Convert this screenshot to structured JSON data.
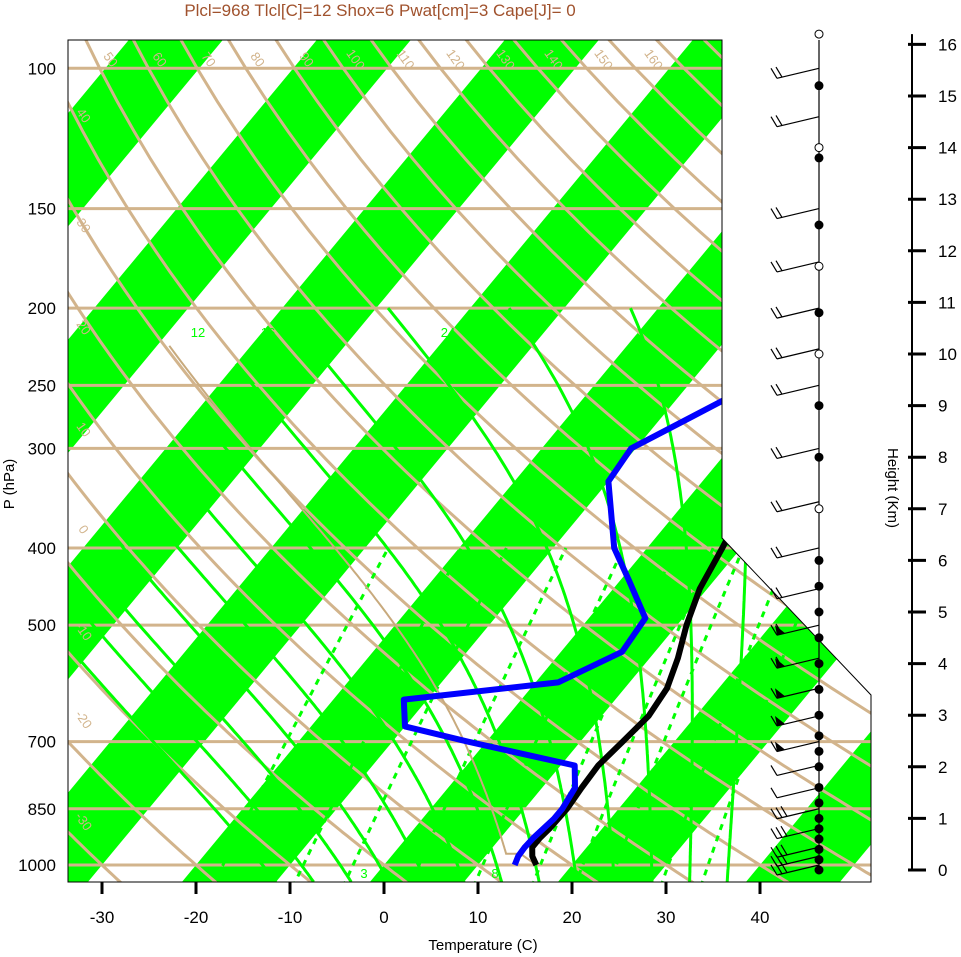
{
  "title": "Plcl=968 Tlcl[C]=12 Shox=6 Pwat[cm]=3 Cape[J]= 0",
  "colors": {
    "title": "#a0522d",
    "isobar": "#d2b48c",
    "band": "#00ff00",
    "temperature": "#000000",
    "dewpoint": "#0000ff",
    "mixing_ratio": "#00ff00",
    "moist_adiabat": "#00ff00",
    "dry_adiabat": "#d2b48c",
    "parcel": "#c8aa7d"
  },
  "chart_data": {
    "type": "line",
    "chart_kind": "skew-T log-P diagram",
    "xlabel": "Temperature (C)",
    "ylabel": "P (hPa)",
    "y2label": "Height (Km)",
    "pressure_ticks": [
      100,
      150,
      200,
      250,
      300,
      400,
      500,
      700,
      850,
      1000
    ],
    "temperature_ticks": [
      -30,
      -20,
      -10,
      0,
      10,
      20,
      30,
      40
    ],
    "height_ticks": [
      0,
      1,
      2,
      3,
      4,
      5,
      6,
      7,
      8,
      9,
      10,
      11,
      12,
      13,
      14,
      15,
      16
    ],
    "isotherm_labels": [
      "50",
      "60",
      "70",
      "80",
      "90",
      "100",
      "110",
      "120",
      "130",
      "140",
      "150",
      "160",
      "40",
      "30",
      "20",
      "10",
      "0",
      "-10",
      "-20",
      "-30"
    ],
    "isotherm_labels_right": [
      "30",
      "20",
      "10",
      "0",
      "10",
      "20",
      "30"
    ],
    "moist_adiabat_labels": [
      "12",
      "16",
      "24",
      "32"
    ],
    "mixing_ratio_labels": [
      "3",
      "8"
    ],
    "series": [
      {
        "name": "Temperature",
        "points": [
          [
            1000,
            16.2
          ],
          [
            975,
            15.0
          ],
          [
            950,
            14.2
          ],
          [
            925,
            14.2
          ],
          [
            900,
            14.4
          ],
          [
            850,
            14.5
          ],
          [
            800,
            14.2
          ],
          [
            750,
            14.0
          ],
          [
            700,
            14.5
          ],
          [
            650,
            15.0
          ],
          [
            600,
            14.5
          ],
          [
            550,
            13.0
          ],
          [
            500,
            11.0
          ],
          [
            450,
            9.2
          ],
          [
            400,
            8.0
          ],
          [
            350,
            6.5
          ],
          [
            300,
            5.2
          ],
          [
            250,
            4.4
          ],
          [
            220,
            5.2
          ],
          [
            205,
            7.7
          ],
          [
            190,
            9.9
          ],
          [
            175,
            12.9
          ],
          [
            160,
            16.0
          ],
          [
            140,
            20.5
          ],
          [
            118,
            31.0
          ],
          [
            108,
            35.0
          ],
          [
            100,
            37.8
          ]
        ]
      },
      {
        "name": "Dewpoint",
        "points": [
          [
            1000,
            13.9
          ],
          [
            975,
            13.5
          ],
          [
            950,
            13.4
          ],
          [
            925,
            13.5
          ],
          [
            875,
            14.0
          ],
          [
            850,
            14.0
          ],
          [
            800,
            13.5
          ],
          [
            750,
            11.5
          ],
          [
            700,
            -2.0
          ],
          [
            670,
            -10.0
          ],
          [
            620,
            -12.5
          ],
          [
            590,
            2.4
          ],
          [
            540,
            6.5
          ],
          [
            490,
            6.0
          ],
          [
            440,
            1.0
          ],
          [
            400,
            -3.5
          ],
          [
            330,
            -10.0
          ],
          [
            300,
            -10.5
          ],
          [
            275,
            -7.0
          ],
          [
            240,
            -1.6
          ],
          [
            210,
            0.7
          ],
          [
            190,
            1.7
          ],
          [
            165,
            1.7
          ],
          [
            145,
            2.0
          ],
          [
            130,
            12.0
          ],
          [
            115,
            22.5
          ],
          [
            100,
            36.0
          ]
        ]
      }
    ],
    "wind_barb_pressures": [
      100,
      115,
      150,
      175,
      200,
      225,
      250,
      300,
      350,
      400,
      450,
      500,
      550,
      600,
      650,
      700,
      750,
      800,
      850,
      900,
      950,
      975,
      1000
    ],
    "dot_heights_km": [
      0,
      0.2,
      0.4,
      0.6,
      0.8,
      1.0,
      1.3,
      1.6,
      2.0,
      2.3,
      2.6,
      3.0,
      3.5,
      4.0,
      4.5,
      5.0,
      5.5,
      6.0,
      7.0,
      8.0,
      9.0,
      10.0,
      10.8,
      11.7,
      12.5,
      13.8,
      14.0,
      15.2,
      16.2
    ]
  }
}
